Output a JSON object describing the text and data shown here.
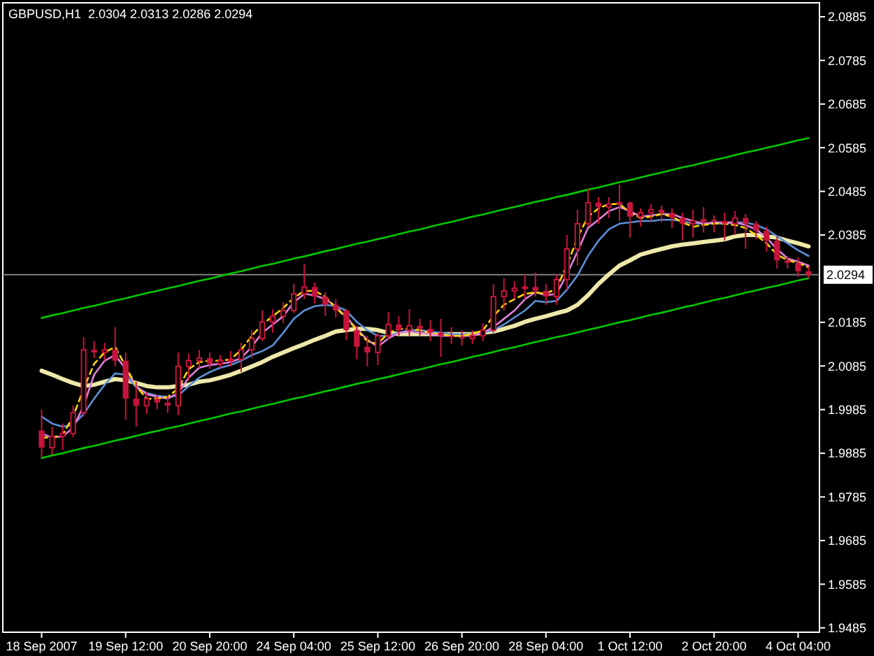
{
  "chart_data": {
    "type": "candlestick",
    "title": "GBPUSD,H1  2.0304 2.0313 2.0286 2.0294",
    "categories": [
      "18 Sep 2007",
      null,
      null,
      null,
      null,
      null,
      null,
      null,
      "19 Sep 12:00",
      null,
      null,
      null,
      null,
      null,
      null,
      null,
      "20 Sep 20:00",
      null,
      null,
      null,
      null,
      null,
      null,
      null,
      "24 Sep 04:00",
      null,
      null,
      null,
      null,
      null,
      null,
      null,
      "25 Sep 12:00",
      null,
      null,
      null,
      null,
      null,
      null,
      null,
      "26 Sep 20:00",
      null,
      null,
      null,
      null,
      null,
      null,
      null,
      "28 Sep 04:00",
      null,
      null,
      null,
      null,
      null,
      null,
      null,
      "1 Oct 12:00",
      null,
      null,
      null,
      null,
      null,
      null,
      null,
      "2 Oct 20:00",
      null,
      null,
      null,
      null,
      null,
      null,
      null,
      "4 Oct 04:00",
      null
    ],
    "ohlc": [
      [
        1.9937,
        1.9985,
        1.9876,
        1.9898
      ],
      [
        1.9898,
        1.9946,
        1.9882,
        1.9924
      ],
      [
        1.9924,
        1.9953,
        1.9892,
        1.993
      ],
      [
        1.993,
        1.9994,
        1.9921,
        1.9978
      ],
      [
        1.9978,
        2.0151,
        1.9969,
        2.0122
      ],
      [
        2.0122,
        2.0142,
        2.0103,
        2.0116
      ],
      [
        2.0116,
        2.0138,
        2.0097,
        2.0122
      ],
      [
        2.0122,
        2.0174,
        2.0084,
        2.0097
      ],
      [
        2.0097,
        2.0116,
        1.9962,
        2.001
      ],
      [
        2.001,
        2.0049,
        1.9946,
        1.9994
      ],
      [
        1.9994,
        2.0026,
        1.9975,
        2.001
      ],
      [
        2.001,
        2.002,
        1.9985,
        2.0001
      ],
      [
        2.0001,
        2.0017,
        1.9978,
        1.9994
      ],
      [
        1.9994,
        2.0116,
        1.9972,
        2.0084
      ],
      [
        2.0084,
        2.0113,
        2.0052,
        2.0097
      ],
      [
        2.0097,
        2.0122,
        2.0081,
        2.0103
      ],
      [
        2.0103,
        2.0116,
        2.0078,
        2.009
      ],
      [
        2.009,
        2.011,
        2.0081,
        2.0097
      ],
      [
        2.0097,
        2.0119,
        2.0084,
        2.01
      ],
      [
        2.01,
        2.0138,
        2.0071,
        2.0122
      ],
      [
        2.0122,
        2.0167,
        2.0103,
        2.0148
      ],
      [
        2.0148,
        2.0212,
        2.0142,
        2.0186
      ],
      [
        2.0186,
        2.0215,
        2.0161,
        2.0199
      ],
      [
        2.0199,
        2.0231,
        2.0183,
        2.0212
      ],
      [
        2.0212,
        2.0273,
        2.0206,
        2.025
      ],
      [
        2.025,
        2.0318,
        2.0238,
        2.0266
      ],
      [
        2.0266,
        2.0276,
        2.0228,
        2.0244
      ],
      [
        2.0244,
        2.0254,
        2.0199,
        2.0225
      ],
      [
        2.0225,
        2.0238,
        2.0196,
        2.0212
      ],
      [
        2.0212,
        2.0215,
        2.0145,
        2.0167
      ],
      [
        2.0167,
        2.0177,
        2.01,
        2.0129
      ],
      [
        2.0129,
        2.0154,
        2.0084,
        2.0116
      ],
      [
        2.0116,
        2.0161,
        2.0087,
        2.0154
      ],
      [
        2.0154,
        2.0209,
        2.0145,
        2.018
      ],
      [
        2.018,
        2.0199,
        2.0154,
        2.0167
      ],
      [
        2.0167,
        2.0215,
        2.0154,
        2.0177
      ],
      [
        2.0177,
        2.0193,
        2.0154,
        2.017
      ],
      [
        2.017,
        2.019,
        2.0142,
        2.0161
      ],
      [
        2.0161,
        2.0193,
        2.0106,
        2.0154
      ],
      [
        2.0154,
        2.0174,
        2.0135,
        2.0151
      ],
      [
        2.0151,
        2.0167,
        2.0132,
        2.0148
      ],
      [
        2.0148,
        2.0167,
        2.0135,
        2.0154
      ],
      [
        2.0154,
        2.0183,
        2.0142,
        2.0167
      ],
      [
        2.0167,
        2.0273,
        2.0161,
        2.0244
      ],
      [
        2.0244,
        2.0286,
        2.0212,
        2.0257
      ],
      [
        2.0257,
        2.0279,
        2.0238,
        2.0263
      ],
      [
        2.0263,
        2.0295,
        2.0238,
        2.0266
      ],
      [
        2.0266,
        2.0299,
        2.0244,
        2.0257
      ],
      [
        2.0257,
        2.0273,
        2.0225,
        2.0244
      ],
      [
        2.0244,
        2.0295,
        2.0225,
        2.0283
      ],
      [
        2.0283,
        2.0385,
        2.026,
        2.0353
      ],
      [
        2.0353,
        2.0443,
        2.0315,
        2.0411
      ],
      [
        2.0411,
        2.0491,
        2.0404,
        2.0459
      ],
      [
        2.0459,
        2.0472,
        2.0411,
        2.0449
      ],
      [
        2.0449,
        2.0472,
        2.0424,
        2.0456
      ],
      [
        2.0456,
        2.05,
        2.0417,
        2.0459
      ],
      [
        2.0459,
        2.0462,
        2.0379,
        2.0427
      ],
      [
        2.0427,
        2.0446,
        2.0404,
        2.0436
      ],
      [
        2.0436,
        2.0456,
        2.0417,
        2.0443
      ],
      [
        2.0443,
        2.0452,
        2.0414,
        2.0436
      ],
      [
        2.0436,
        2.0446,
        2.0401,
        2.0424
      ],
      [
        2.0424,
        2.0436,
        2.0372,
        2.0411
      ],
      [
        2.0411,
        2.0443,
        2.0379,
        2.0417
      ],
      [
        2.0417,
        2.0449,
        2.0391,
        2.042
      ],
      [
        2.042,
        2.043,
        2.0391,
        2.0417
      ],
      [
        2.0417,
        2.0436,
        2.0372,
        2.0411
      ],
      [
        2.0411,
        2.044,
        2.0385,
        2.0424
      ],
      [
        2.0424,
        2.0433,
        2.0353,
        2.0411
      ],
      [
        2.0411,
        2.0417,
        2.0375,
        2.0395
      ],
      [
        2.0395,
        2.0404,
        2.0347,
        2.0372
      ],
      [
        2.0372,
        2.0382,
        2.0308,
        2.0327
      ],
      [
        2.0327,
        2.0337,
        2.0308,
        2.0321
      ],
      [
        2.0321,
        2.0334,
        2.0289,
        2.0302
      ],
      [
        2.0302,
        2.0313,
        2.0286,
        2.0294
      ]
    ],
    "color": "#c8143c",
    "series": [
      {
        "type": "line",
        "color": "#eee8aa",
        "values": [
          2.0074,
          2.0065,
          2.0055,
          2.0046,
          2.0039,
          2.0042,
          2.0049,
          2.0055,
          2.0052,
          2.0046,
          2.0039,
          2.0036,
          2.0036,
          2.0039,
          2.0042,
          2.0049,
          2.0052,
          2.0058,
          2.0065,
          2.0074,
          2.0084,
          2.0094,
          2.0106,
          2.0116,
          2.0126,
          2.0135,
          2.0145,
          2.0154,
          2.0164,
          2.0167,
          2.017,
          2.017,
          2.0167,
          2.0161,
          2.0158,
          2.0158,
          2.0158,
          2.0158,
          2.0158,
          2.0158,
          2.0158,
          2.0158,
          2.0161,
          2.0164,
          2.017,
          2.0177,
          2.0186,
          2.0193,
          2.0199,
          2.0206,
          2.0212,
          2.0225,
          2.0247,
          2.0273,
          2.0295,
          2.0315,
          2.0327,
          2.034,
          2.0347,
          2.0353,
          2.0359,
          2.0363,
          2.0366,
          2.0369,
          2.0372,
          2.0375,
          2.0382,
          2.0385,
          2.0385,
          2.0382,
          2.0379,
          2.0372,
          2.0366,
          2.0359
        ]
      },
      {
        "type": "line",
        "color": "#5b8fd6",
        "values": [
          1.9969,
          1.9953,
          1.9946,
          1.995,
          1.9975,
          2.001,
          2.0042,
          2.0068,
          2.0065,
          2.0036,
          2.0023,
          2.0017,
          2.0014,
          2.0017,
          2.0039,
          2.0058,
          2.0071,
          2.0081,
          2.0087,
          2.0097,
          2.011,
          2.0119,
          2.0132,
          2.0161,
          2.0193,
          2.0212,
          2.0222,
          2.0225,
          2.0222,
          2.0212,
          2.0186,
          2.0167,
          2.0154,
          2.0154,
          2.0161,
          2.0167,
          2.0167,
          2.0164,
          2.0161,
          2.0158,
          2.0158,
          2.0158,
          2.0161,
          2.0167,
          2.018,
          2.0196,
          2.0212,
          2.0234,
          2.0231,
          2.0234,
          2.026,
          2.0292,
          2.0337,
          2.0372,
          2.0398,
          2.0411,
          2.0414,
          2.0417,
          2.0417,
          2.042,
          2.042,
          2.0417,
          2.0411,
          2.0411,
          2.0411,
          2.0411,
          2.0414,
          2.0414,
          2.0408,
          2.0398,
          2.0382,
          2.0366,
          2.035,
          2.0337
        ]
      },
      {
        "type": "line",
        "color": "#e080d8",
        "values": [
          1.993,
          1.9921,
          1.9924,
          1.9943,
          1.9994,
          2.0065,
          2.0097,
          2.011,
          2.0078,
          2.0039,
          2.002,
          2.0014,
          2.001,
          2.0023,
          2.0058,
          2.0081,
          2.0087,
          2.009,
          2.0094,
          2.0103,
          2.0129,
          2.0161,
          2.018,
          2.0199,
          2.0231,
          2.025,
          2.0247,
          2.0238,
          2.0222,
          2.0196,
          2.017,
          2.0145,
          2.0129,
          2.0148,
          2.0161,
          2.0164,
          2.0161,
          2.0158,
          2.0154,
          2.0154,
          2.0154,
          2.0154,
          2.0161,
          2.0174,
          2.0193,
          2.0212,
          2.0238,
          2.0254,
          2.0247,
          2.025,
          2.0295,
          2.0347,
          2.0401,
          2.042,
          2.044,
          2.0449,
          2.044,
          2.0427,
          2.043,
          2.0433,
          2.0433,
          2.0424,
          2.0417,
          2.0411,
          2.0414,
          2.0414,
          2.0414,
          2.0408,
          2.0398,
          2.0379,
          2.0353,
          2.0331,
          2.0324,
          2.0315
        ]
      },
      {
        "type": "line",
        "color": "#ffd700",
        "line_style": "dashed",
        "values": [
          1.9921,
          1.9921,
          1.9927,
          1.9969,
          2.0033,
          2.009,
          2.0116,
          2.0129,
          2.0084,
          2.0039,
          2.001,
          2.001,
          2.0014,
          2.0033,
          2.0078,
          2.0094,
          2.0097,
          2.0097,
          2.01,
          2.0122,
          2.0154,
          2.018,
          2.0199,
          2.0218,
          2.0241,
          2.0257,
          2.0257,
          2.0244,
          2.0218,
          2.0196,
          2.0167,
          2.0142,
          2.0135,
          2.0161,
          2.017,
          2.017,
          2.0167,
          2.0161,
          2.0158,
          2.0154,
          2.0154,
          2.0158,
          2.0167,
          2.0199,
          2.0225,
          2.0238,
          2.025,
          2.0254,
          2.025,
          2.0263,
          2.0315,
          2.0379,
          2.0427,
          2.0446,
          2.0456,
          2.0456,
          2.0436,
          2.0424,
          2.0427,
          2.0433,
          2.0427,
          2.0414,
          2.0404,
          2.0408,
          2.0411,
          2.0411,
          2.0408,
          2.0401,
          2.0385,
          2.0366,
          2.034,
          2.0327,
          2.0321,
          2.0311
        ]
      },
      {
        "type": "line",
        "color": "#00c800",
        "values": [
          2.0195,
          2.0201,
          2.0206,
          2.0212,
          2.0218,
          2.0223,
          2.0229,
          2.0235,
          2.024,
          2.0246,
          2.0252,
          2.0257,
          2.0263,
          2.0268,
          2.0274,
          2.028,
          2.0285,
          2.0291,
          2.0297,
          2.0302,
          2.0308,
          2.0314,
          2.0319,
          2.0325,
          2.0331,
          2.0336,
          2.0342,
          2.0348,
          2.0353,
          2.0359,
          2.0365,
          2.037,
          2.0376,
          2.0381,
          2.0387,
          2.0393,
          2.0398,
          2.0404,
          2.041,
          2.0415,
          2.0421,
          2.0427,
          2.0432,
          2.0438,
          2.0444,
          2.0449,
          2.0455,
          2.0461,
          2.0466,
          2.0472,
          2.0477,
          2.0483,
          2.0489,
          2.0494,
          2.05,
          2.0506,
          2.0511,
          2.0517,
          2.0523,
          2.0528,
          2.0534,
          2.054,
          2.0545,
          2.0551,
          2.0557,
          2.0562,
          2.0568,
          2.0574,
          2.0579,
          2.0585,
          2.059,
          2.0596,
          2.0602,
          2.0607
        ]
      },
      {
        "type": "line",
        "color": "#00c800",
        "values": [
          1.9874,
          1.988,
          1.9885,
          1.9891,
          1.9897,
          1.9902,
          1.9908,
          1.9914,
          1.9919,
          1.9925,
          1.9931,
          1.9936,
          1.9942,
          1.9947,
          1.9953,
          1.9959,
          1.9964,
          1.997,
          1.9976,
          1.9981,
          1.9987,
          1.9993,
          1.9998,
          2.0004,
          2.001,
          2.0015,
          2.0021,
          2.0027,
          2.0032,
          2.0038,
          2.0044,
          2.0049,
          2.0055,
          2.006,
          2.0066,
          2.0072,
          2.0077,
          2.0083,
          2.0089,
          2.0094,
          2.01,
          2.0106,
          2.0111,
          2.0117,
          2.0123,
          2.0128,
          2.0134,
          2.014,
          2.0145,
          2.0151,
          2.0156,
          2.0162,
          2.0168,
          2.0173,
          2.0179,
          2.0185,
          2.019,
          2.0196,
          2.0202,
          2.0207,
          2.0213,
          2.0219,
          2.0224,
          2.023,
          2.0236,
          2.0241,
          2.0247,
          2.0253,
          2.0258,
          2.0264,
          2.0269,
          2.0275,
          2.0281,
          2.0286
        ]
      }
    ],
    "ylim": [
      1.9475,
      2.0917
    ],
    "yticks": [
      1.9485,
      1.9585,
      1.9685,
      1.9785,
      1.9885,
      1.9985,
      2.0085,
      2.0185,
      2.0385,
      2.0485,
      2.0585,
      2.0685,
      2.0785,
      2.0885
    ],
    "ref_lines": [
      {
        "axis": "y",
        "value": 2.0294,
        "label": "2.0294",
        "color": "#808080"
      }
    ]
  }
}
